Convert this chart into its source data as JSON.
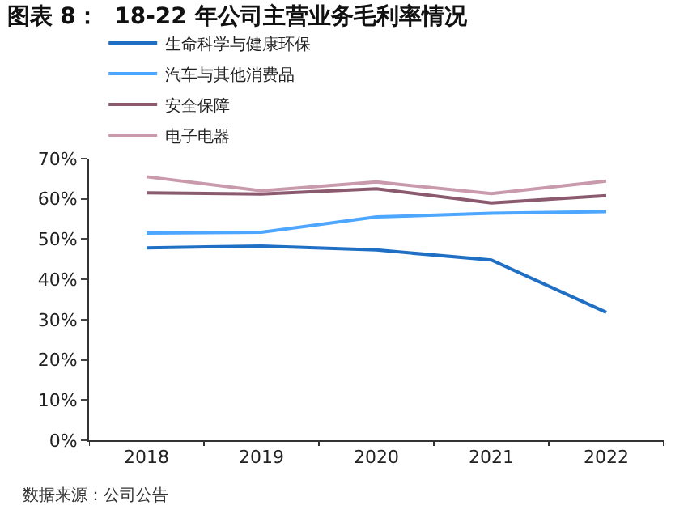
{
  "chart_data": {
    "type": "line",
    "title": "图表 8：  18-22 年公司主营业务毛利率情况",
    "categories": [
      "2018",
      "2019",
      "2020",
      "2021",
      "2022"
    ],
    "series": [
      {
        "name": "生命科学与健康环保",
        "color": "#1f6fc5",
        "values": [
          47.8,
          48.3,
          47.3,
          44.8,
          31.8
        ]
      },
      {
        "name": "汽车与其他消费品",
        "color": "#4da6ff",
        "values": [
          51.5,
          51.7,
          55.5,
          56.4,
          56.8
        ]
      },
      {
        "name": "安全保障",
        "color": "#8b5a6e",
        "values": [
          61.5,
          61.2,
          62.5,
          59.0,
          60.8
        ]
      },
      {
        "name": "电子电器",
        "color": "#c99aac",
        "values": [
          65.5,
          62.0,
          64.2,
          61.3,
          64.4
        ]
      }
    ],
    "ylim": [
      0,
      70
    ],
    "yticks": [
      {
        "value": 0,
        "label": "0%"
      },
      {
        "value": 10,
        "label": "10%"
      },
      {
        "value": 20,
        "label": "20%"
      },
      {
        "value": 30,
        "label": "30%"
      },
      {
        "value": 40,
        "label": "40%"
      },
      {
        "value": 50,
        "label": "50%"
      },
      {
        "value": 60,
        "label": "60%"
      },
      {
        "value": 70,
        "label": "70%"
      }
    ],
    "legend": "top",
    "marker": "none",
    "line_style": "solid",
    "annotations": [
      "数据来源：公司公告"
    ]
  }
}
